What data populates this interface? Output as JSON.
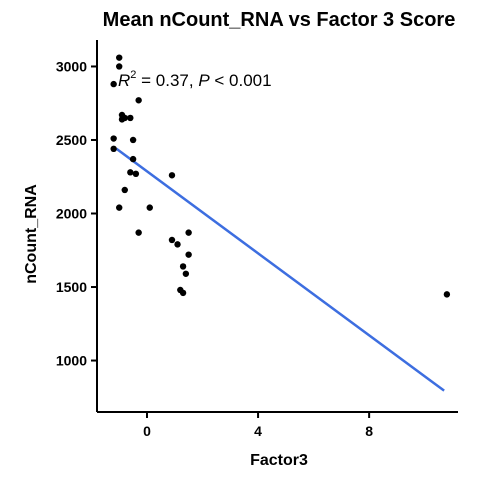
{
  "chart_data": {
    "type": "scatter",
    "title": "Mean nCount_RNA vs Factor 3 Score",
    "xlabel": "Factor3",
    "ylabel": "nCount_RNA",
    "xlim": [
      -1.8,
      11.2
    ],
    "ylim": [
      650,
      3180
    ],
    "x_ticks": [
      0,
      4,
      8
    ],
    "y_ticks": [
      1000,
      1500,
      2000,
      2500,
      3000
    ],
    "grid": false,
    "legend": "none",
    "annotation": {
      "r_label": "R",
      "r_exp": "2",
      "r_value": " = 0.37, ",
      "p_label": "P",
      "p_value": " < 0.001"
    },
    "points": [
      {
        "x": -1.0,
        "y": 3060
      },
      {
        "x": -1.0,
        "y": 3000
      },
      {
        "x": -1.2,
        "y": 2880
      },
      {
        "x": -0.3,
        "y": 2770
      },
      {
        "x": -0.9,
        "y": 2670
      },
      {
        "x": -0.9,
        "y": 2640
      },
      {
        "x": -0.8,
        "y": 2650
      },
      {
        "x": -0.6,
        "y": 2650
      },
      {
        "x": -1.2,
        "y": 2510
      },
      {
        "x": -0.5,
        "y": 2500
      },
      {
        "x": -1.2,
        "y": 2440
      },
      {
        "x": -0.5,
        "y": 2370
      },
      {
        "x": -0.6,
        "y": 2280
      },
      {
        "x": -0.4,
        "y": 2270
      },
      {
        "x": 0.9,
        "y": 2260
      },
      {
        "x": -0.8,
        "y": 2160
      },
      {
        "x": -1.0,
        "y": 2040
      },
      {
        "x": 0.1,
        "y": 2040
      },
      {
        "x": -0.3,
        "y": 1870
      },
      {
        "x": 1.5,
        "y": 1870
      },
      {
        "x": 0.9,
        "y": 1820
      },
      {
        "x": 1.1,
        "y": 1790
      },
      {
        "x": 1.5,
        "y": 1720
      },
      {
        "x": 1.3,
        "y": 1640
      },
      {
        "x": 1.4,
        "y": 1590
      },
      {
        "x": 1.2,
        "y": 1480
      },
      {
        "x": 1.3,
        "y": 1460
      },
      {
        "x": 10.8,
        "y": 1450
      }
    ],
    "fit_line": {
      "x": [
        -1.1,
        10.7
      ],
      "y": [
        2440,
        795
      ],
      "color": "#3d6ee0"
    },
    "point_color": "#000000"
  }
}
